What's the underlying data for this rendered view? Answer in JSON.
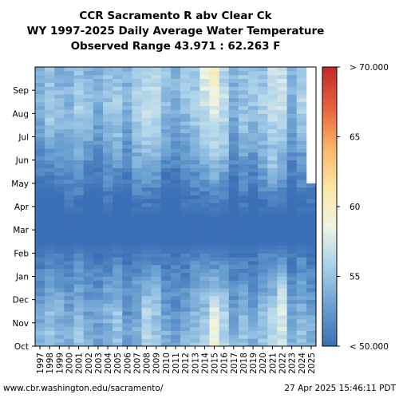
{
  "chart_data": {
    "type": "heatmap",
    "title": [
      "CCR Sacramento R abv Clear Ck",
      "WY 1997-2025 Daily Average Water Temperature",
      "Observed Range 43.971 : 62.263 F"
    ],
    "x_categories": [
      "1997",
      "1998",
      "1999",
      "2000",
      "2001",
      "2002",
      "2003",
      "2004",
      "2005",
      "2006",
      "2007",
      "2008",
      "2009",
      "2010",
      "2011",
      "2012",
      "2013",
      "2014",
      "2015",
      "2016",
      "2017",
      "2018",
      "2019",
      "2020",
      "2021",
      "2022",
      "2023",
      "2024",
      "2025"
    ],
    "y_categories": [
      "Oct",
      "Nov",
      "Dec",
      "Jan",
      "Feb",
      "Mar",
      "Apr",
      "May",
      "Jun",
      "Jul",
      "Aug",
      "Sep"
    ],
    "value_units": "F",
    "colorbar": {
      "min": 50,
      "max": 70,
      "tick_labels": [
        "< 50.000",
        "55",
        "60",
        "65",
        "> 70.000"
      ],
      "tick_values": [
        50,
        55,
        60,
        65,
        70
      ],
      "colors": [
        "#3b6fb6",
        "#6a9fd0",
        "#a9d0ea",
        "#eef4e4",
        "#fde6a3",
        "#f9b367",
        "#e8603d",
        "#c0282a"
      ]
    },
    "monthly_estimates": {
      "note_years": "rows = water years 1997..2025, columns = Oct..Sep",
      "values": [
        [
          54,
          53,
          52,
          51,
          50,
          50,
          50,
          51,
          52,
          53,
          54,
          54
        ],
        [
          55,
          55,
          53,
          52,
          50,
          50,
          50,
          51,
          53,
          55,
          55,
          55
        ],
        [
          54,
          54,
          53,
          51,
          50,
          50,
          50,
          52,
          53,
          54,
          55,
          54
        ],
        [
          54,
          53,
          52,
          51,
          50,
          50,
          51,
          52,
          53,
          54,
          54,
          54
        ],
        [
          55,
          54,
          53,
          52,
          50,
          50,
          51,
          52,
          54,
          55,
          56,
          55
        ],
        [
          54,
          53,
          52,
          51,
          50,
          50,
          50,
          51,
          53,
          54,
          55,
          54
        ],
        [
          53,
          53,
          52,
          51,
          50,
          50,
          50,
          51,
          52,
          53,
          54,
          54
        ],
        [
          54,
          54,
          53,
          51,
          50,
          50,
          51,
          52,
          53,
          54,
          55,
          55
        ],
        [
          55,
          55,
          53,
          52,
          50,
          50,
          50,
          52,
          54,
          55,
          56,
          55
        ],
        [
          53,
          52,
          52,
          51,
          50,
          50,
          50,
          51,
          52,
          53,
          54,
          54
        ],
        [
          54,
          53,
          53,
          51,
          50,
          50,
          51,
          53,
          54,
          55,
          56,
          55
        ],
        [
          56,
          56,
          54,
          52,
          50,
          50,
          51,
          53,
          55,
          56,
          57,
          56
        ],
        [
          55,
          55,
          54,
          52,
          50,
          50,
          51,
          53,
          55,
          56,
          57,
          56
        ],
        [
          54,
          53,
          52,
          51,
          50,
          50,
          50,
          51,
          53,
          54,
          55,
          55
        ],
        [
          53,
          52,
          52,
          51,
          50,
          50,
          50,
          51,
          52,
          53,
          54,
          54
        ],
        [
          54,
          53,
          52,
          51,
          50,
          50,
          51,
          52,
          53,
          54,
          55,
          55
        ],
        [
          55,
          54,
          53,
          52,
          50,
          50,
          51,
          52,
          54,
          55,
          56,
          55
        ],
        [
          56,
          55,
          54,
          52,
          50,
          50,
          51,
          53,
          55,
          56,
          57,
          58
        ],
        [
          59,
          58,
          55,
          52,
          50,
          50,
          52,
          54,
          56,
          57,
          58,
          60
        ],
        [
          56,
          56,
          54,
          52,
          50,
          50,
          51,
          53,
          55,
          56,
          57,
          56
        ],
        [
          54,
          53,
          52,
          51,
          50,
          50,
          50,
          51,
          52,
          53,
          54,
          54
        ],
        [
          55,
          54,
          53,
          51,
          50,
          50,
          51,
          52,
          54,
          55,
          55,
          55
        ],
        [
          54,
          53,
          52,
          51,
          50,
          50,
          50,
          51,
          53,
          54,
          55,
          55
        ],
        [
          55,
          55,
          53,
          52,
          50,
          50,
          51,
          53,
          54,
          55,
          56,
          55
        ],
        [
          56,
          56,
          54,
          52,
          50,
          50,
          51,
          55,
          55,
          56,
          57,
          57
        ],
        [
          57,
          58,
          56,
          53,
          50,
          50,
          51,
          53,
          55,
          56,
          57,
          57
        ],
        [
          54,
          53,
          52,
          51,
          50,
          50,
          50,
          51,
          52,
          53,
          54,
          54
        ],
        [
          55,
          54,
          53,
          52,
          50,
          50,
          51,
          52,
          53,
          55,
          56,
          55
        ],
        [
          54,
          53,
          52,
          51,
          50,
          50,
          51,
          null,
          null,
          null,
          null,
          null
        ]
      ]
    },
    "footer_left": "www.cbr.washington.edu/sacramento/",
    "footer_right": "27 Apr 2025 15:46:11 PDT"
  }
}
